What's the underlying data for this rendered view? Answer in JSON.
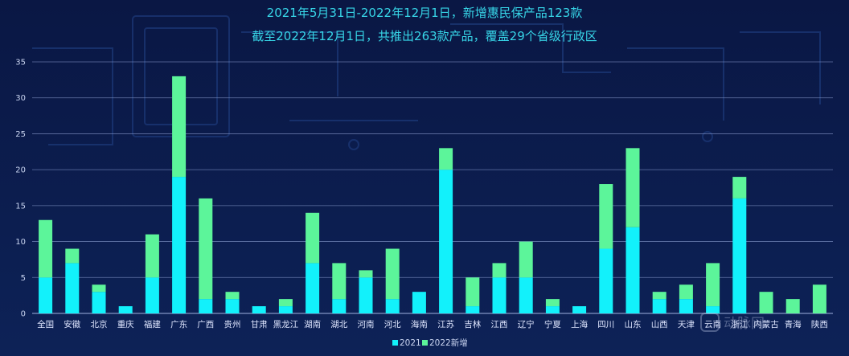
{
  "chart_data": {
    "type": "bar",
    "stacked": true,
    "title": "2021年5月31日-2022年12月1日，新增惠民保产品123款",
    "subtitle": "截至2022年12月1日，共推出263款产品，覆盖29个省级行政区",
    "xlabel": "",
    "ylabel": "",
    "ylim": [
      0,
      35
    ],
    "yticks": [
      0,
      5,
      10,
      15,
      20,
      25,
      30,
      35
    ],
    "grid": true,
    "legend_position": "bottom-center",
    "categories": [
      "全国",
      "安徽",
      "北京",
      "重庆",
      "福建",
      "广东",
      "广西",
      "贵州",
      "甘肃",
      "黑龙江",
      "湖南",
      "湖北",
      "河南",
      "河北",
      "海南",
      "江苏",
      "吉林",
      "江西",
      "辽宁",
      "宁夏",
      "上海",
      "四川",
      "山东",
      "山西",
      "天津",
      "云南",
      "浙江",
      "内蒙古",
      "青海",
      "陕西"
    ],
    "series": [
      {
        "name": "2021",
        "color": "#12f1fb",
        "values": [
          5,
          7,
          3,
          1,
          5,
          19,
          2,
          2,
          1,
          1,
          7,
          2,
          5,
          2,
          3,
          20,
          1,
          5,
          5,
          1,
          1,
          9,
          12,
          2,
          2,
          1,
          16,
          0,
          0,
          0
        ]
      },
      {
        "name": "2022新增",
        "color": "#5cf59a",
        "values": [
          8,
          2,
          1,
          0,
          6,
          14,
          14,
          1,
          0,
          1,
          7,
          5,
          1,
          7,
          0,
          3,
          4,
          2,
          5,
          1,
          0,
          9,
          11,
          1,
          2,
          6,
          3,
          3,
          2,
          4
        ]
      }
    ]
  },
  "watermark": "动脉网"
}
